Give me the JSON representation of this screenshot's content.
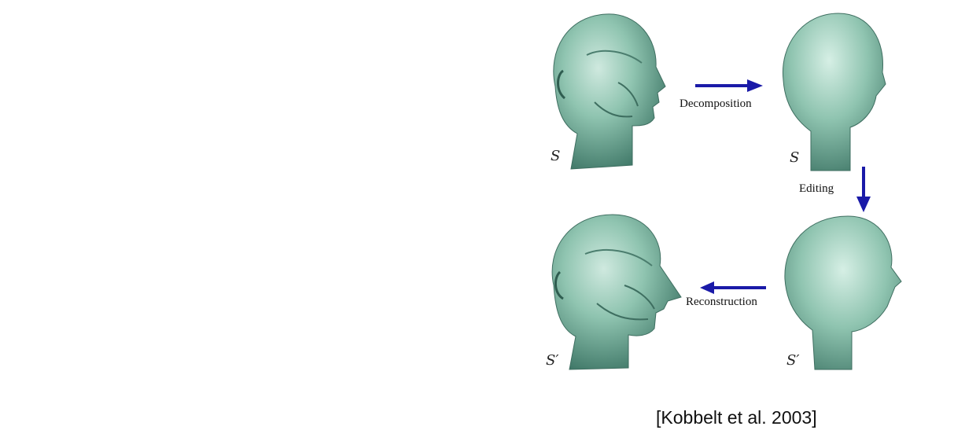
{
  "figure": {
    "symbols": {
      "original": "S",
      "smooth": "S",
      "edited_smooth": "S′",
      "result": "S′"
    },
    "labels": {
      "decomposition": "Decomposition",
      "editing": "Editing",
      "reconstruction": "Reconstruction"
    },
    "colors": {
      "surface": "#8fc4b0",
      "surface_shadow": "#4f8a78",
      "arrow": "#1a1aa8"
    }
  },
  "citation": "[Kobbelt et al. 2003]"
}
